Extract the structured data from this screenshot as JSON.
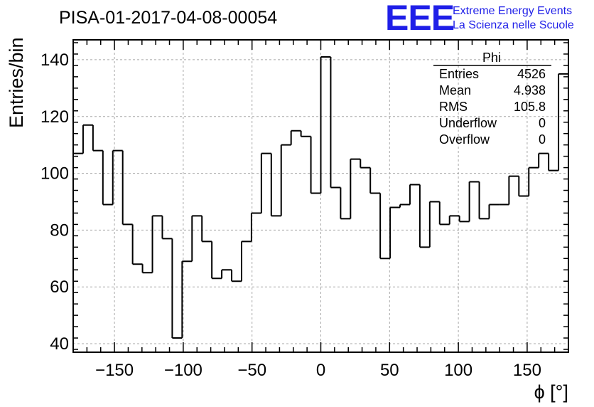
{
  "header": {
    "title": "PISA-01-2017-04-08-00054",
    "logo_text": "EEE",
    "logo_line1": "Extreme Energy Events",
    "logo_line2": "La Scienza nelle Scuole",
    "logo_color": "#1f1fe8"
  },
  "stats": {
    "name": "Phi",
    "rows": [
      {
        "label": "Entries",
        "value": "4526"
      },
      {
        "label": "Mean",
        "value": "4.938"
      },
      {
        "label": "RMS",
        "value": "105.8"
      },
      {
        "label": "Underflow",
        "value": "0"
      },
      {
        "label": "Overflow",
        "value": "0"
      }
    ]
  },
  "chart_data": {
    "type": "bar",
    "histogram": true,
    "title": "PISA-01-2017-04-08-00054",
    "xlabel": "ϕ [°]",
    "ylabel": "Entries/bin",
    "xlim": [
      -180,
      180
    ],
    "ylim": [
      37,
      147
    ],
    "bin_width": 7.2,
    "x_ticks": [
      -150,
      -100,
      -50,
      0,
      50,
      100,
      150
    ],
    "x_tick_labels": [
      "−150",
      "−100",
      "−50",
      "0",
      "50",
      "100",
      "150"
    ],
    "y_ticks": [
      40,
      60,
      80,
      100,
      120,
      140
    ],
    "y_tick_labels": [
      "40",
      "60",
      "80",
      "100",
      "120",
      "140"
    ],
    "grid": true,
    "values": [
      107,
      117,
      108,
      89,
      108,
      82,
      68,
      65,
      85,
      77,
      42,
      69,
      85,
      76,
      63,
      66,
      62,
      76,
      86,
      107,
      85,
      110,
      115,
      113,
      93,
      141,
      95,
      84,
      105,
      102,
      93,
      70,
      88,
      89,
      96,
      74,
      90,
      82,
      85,
      83,
      97,
      84,
      89,
      89,
      99,
      92,
      102,
      107,
      101,
      135
    ]
  }
}
